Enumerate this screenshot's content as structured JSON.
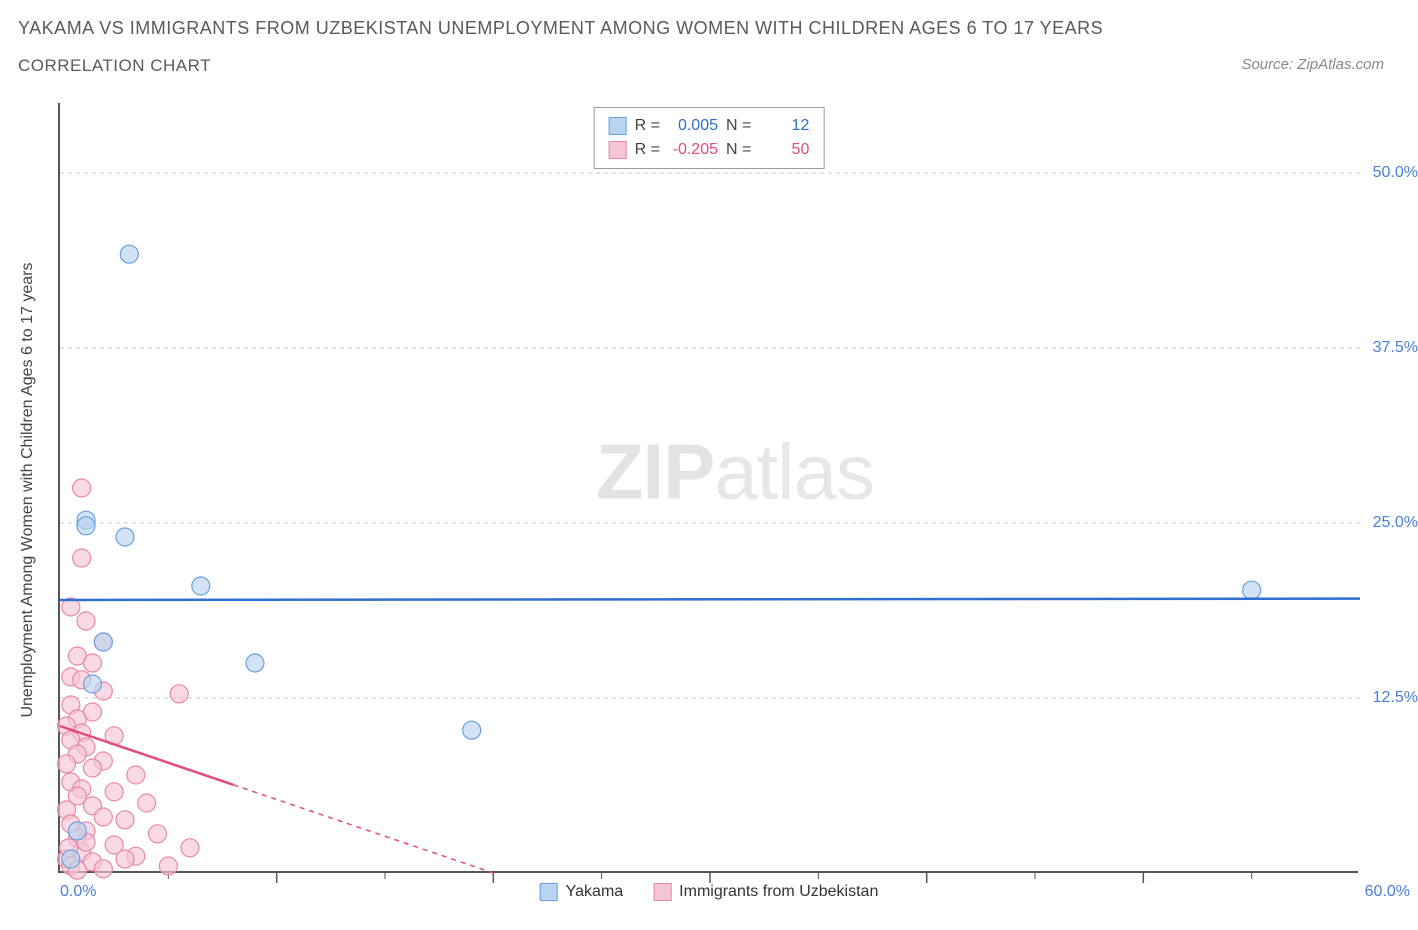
{
  "title_line1": "YAKAMA VS IMMIGRANTS FROM UZBEKISTAN UNEMPLOYMENT AMONG WOMEN WITH CHILDREN AGES 6 TO 17 YEARS",
  "title_line2": "CORRELATION CHART",
  "source_text": "Source: ZipAtlas.com",
  "y_axis_title": "Unemployment Among Women with Children Ages 6 to 17 years",
  "watermark_bold": "ZIP",
  "watermark_light": "atlas",
  "chart": {
    "type": "scatter",
    "xlim": [
      0,
      60
    ],
    "ylim": [
      0,
      55
    ],
    "x_ticks_major": [
      10,
      20,
      30,
      40,
      50
    ],
    "x_ticks_minor": [
      5,
      15,
      25,
      35,
      45,
      55
    ],
    "y_grid": [
      12.5,
      25.0,
      37.5,
      50.0
    ],
    "y_tick_labels": [
      "12.5%",
      "25.0%",
      "37.5%",
      "50.0%"
    ],
    "x_origin_label": "0.0%",
    "x_max_label": "60.0%",
    "grid_color": "#cccccc",
    "axis_color": "#555555",
    "background_color": "#ffffff",
    "label_color": "#4a7fd8",
    "series": [
      {
        "name": "Yakama",
        "color_fill": "#b8d4f0",
        "color_stroke": "#6aa0de",
        "trend_color": "#2e6fd0",
        "R": "0.005",
        "N": "12",
        "trend": {
          "x1": 0,
          "y1": 19.5,
          "x2": 60,
          "y2": 19.6
        },
        "points": [
          {
            "x": 3.2,
            "y": 44.2
          },
          {
            "x": 1.2,
            "y": 25.2
          },
          {
            "x": 1.2,
            "y": 24.8
          },
          {
            "x": 3.0,
            "y": 24.0
          },
          {
            "x": 6.5,
            "y": 20.5
          },
          {
            "x": 55.0,
            "y": 20.2
          },
          {
            "x": 2.0,
            "y": 16.5
          },
          {
            "x": 9.0,
            "y": 15.0
          },
          {
            "x": 1.5,
            "y": 13.5
          },
          {
            "x": 19.0,
            "y": 10.2
          },
          {
            "x": 0.8,
            "y": 3.0
          },
          {
            "x": 0.5,
            "y": 1.0
          }
        ]
      },
      {
        "name": "Immigrants from Uzbekistan",
        "color_fill": "#f6c6d6",
        "color_stroke": "#e887a8",
        "trend_color": "#e34b7b",
        "R": "-0.205",
        "N": "50",
        "trend": {
          "x1": 0,
          "y1": 10.5,
          "x2": 20,
          "y2": 0
        },
        "trend_solid_end": 8,
        "points": [
          {
            "x": 1.0,
            "y": 27.5
          },
          {
            "x": 1.0,
            "y": 22.5
          },
          {
            "x": 0.5,
            "y": 19.0
          },
          {
            "x": 1.2,
            "y": 18.0
          },
          {
            "x": 2.0,
            "y": 16.5
          },
          {
            "x": 0.8,
            "y": 15.5
          },
          {
            "x": 1.5,
            "y": 15.0
          },
          {
            "x": 0.5,
            "y": 14.0
          },
          {
            "x": 1.0,
            "y": 13.8
          },
          {
            "x": 2.0,
            "y": 13.0
          },
          {
            "x": 5.5,
            "y": 12.8
          },
          {
            "x": 0.5,
            "y": 12.0
          },
          {
            "x": 1.5,
            "y": 11.5
          },
          {
            "x": 0.8,
            "y": 11.0
          },
          {
            "x": 0.3,
            "y": 10.5
          },
          {
            "x": 1.0,
            "y": 10.0
          },
          {
            "x": 2.5,
            "y": 9.8
          },
          {
            "x": 0.5,
            "y": 9.5
          },
          {
            "x": 1.2,
            "y": 9.0
          },
          {
            "x": 0.8,
            "y": 8.5
          },
          {
            "x": 2.0,
            "y": 8.0
          },
          {
            "x": 0.3,
            "y": 7.8
          },
          {
            "x": 1.5,
            "y": 7.5
          },
          {
            "x": 3.5,
            "y": 7.0
          },
          {
            "x": 0.5,
            "y": 6.5
          },
          {
            "x": 1.0,
            "y": 6.0
          },
          {
            "x": 2.5,
            "y": 5.8
          },
          {
            "x": 0.8,
            "y": 5.5
          },
          {
            "x": 4.0,
            "y": 5.0
          },
          {
            "x": 1.5,
            "y": 4.8
          },
          {
            "x": 0.3,
            "y": 4.5
          },
          {
            "x": 2.0,
            "y": 4.0
          },
          {
            "x": 3.0,
            "y": 3.8
          },
          {
            "x": 0.5,
            "y": 3.5
          },
          {
            "x": 1.2,
            "y": 3.0
          },
          {
            "x": 4.5,
            "y": 2.8
          },
          {
            "x": 0.8,
            "y": 2.5
          },
          {
            "x": 2.5,
            "y": 2.0
          },
          {
            "x": 6.0,
            "y": 1.8
          },
          {
            "x": 1.0,
            "y": 1.5
          },
          {
            "x": 3.5,
            "y": 1.2
          },
          {
            "x": 0.3,
            "y": 1.0
          },
          {
            "x": 1.5,
            "y": 0.8
          },
          {
            "x": 0.5,
            "y": 0.5
          },
          {
            "x": 2.0,
            "y": 0.3
          },
          {
            "x": 5.0,
            "y": 0.5
          },
          {
            "x": 0.8,
            "y": 0.2
          },
          {
            "x": 3.0,
            "y": 1.0
          },
          {
            "x": 1.2,
            "y": 2.2
          },
          {
            "x": 0.4,
            "y": 1.8
          }
        ]
      }
    ]
  },
  "legend_top": {
    "r_label": "R =",
    "n_label": "N ="
  },
  "marker_radius": 9,
  "marker_stroke_width": 1.2,
  "trend_line_width": 2.5
}
